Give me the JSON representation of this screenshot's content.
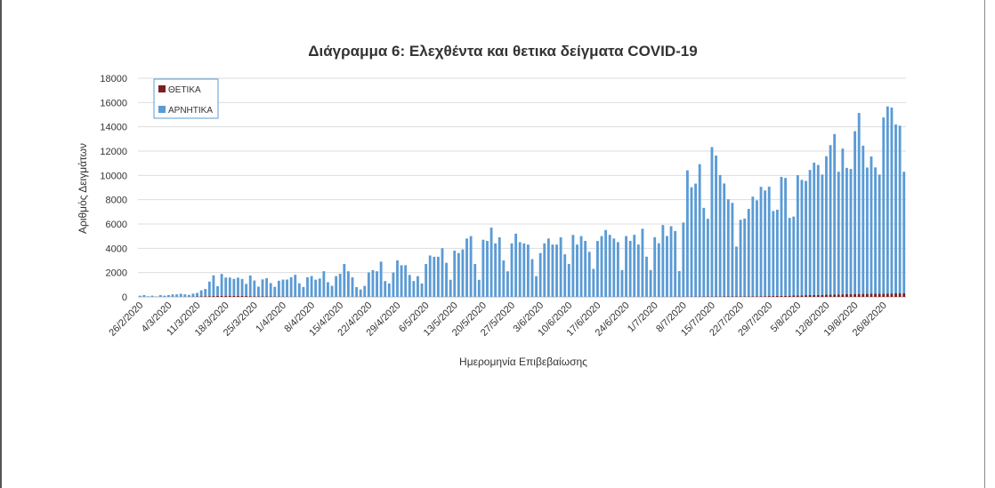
{
  "chart_data": {
    "type": "bar",
    "stacked": true,
    "title": "Διάγραμμα 6: Ελεχθέντα και θετικα δείγματα COVID-19",
    "xlabel": "Ημερομηνία Επιβεβαίωσης",
    "ylabel": "Αριθμός Δειγμάτων",
    "ylim": [
      0,
      18000
    ],
    "yticks": [
      "0",
      "2000",
      "4000",
      "6000",
      "8000",
      "10000",
      "12000",
      "14000",
      "16000",
      "18000"
    ],
    "xticks": [
      "26/2/2020",
      "4/3/2020",
      "11/3/2020",
      "18/3/2020",
      "25/3/2020",
      "1/4/2020",
      "8/4/2020",
      "15/4/2020",
      "22/4/2020",
      "29/4/2020",
      "6/5/2020",
      "13/5/2020",
      "20/5/2020",
      "27/5/2020",
      "3/6/2020",
      "10/6/2020",
      "17/6/2020",
      "24/6/2020",
      "1/7/2020",
      "8/7/2020",
      "15/7/2020",
      "22/7/2020",
      "29/7/2020",
      "5/8/2020",
      "12/8/2020",
      "19/8/2020",
      "26/8/2020"
    ],
    "legend_position": "top-left",
    "grid": true,
    "series": [
      {
        "name": "ΘΕΤΙΚΑ",
        "color": "#7b2020",
        "values": [
          0,
          0,
          0,
          0,
          0,
          0,
          0,
          2,
          3,
          5,
          8,
          10,
          15,
          20,
          30,
          40,
          50,
          60,
          70,
          80,
          90,
          95,
          90,
          85,
          80,
          75,
          70,
          60,
          50,
          45,
          40,
          40,
          35,
          30,
          30,
          25,
          25,
          20,
          20,
          20,
          18,
          15,
          15,
          15,
          12,
          12,
          10,
          10,
          10,
          10,
          8,
          8,
          8,
          8,
          8,
          6,
          6,
          6,
          5,
          5,
          5,
          5,
          5,
          5,
          5,
          5,
          5,
          5,
          5,
          5,
          5,
          5,
          5,
          5,
          5,
          5,
          5,
          5,
          5,
          5,
          5,
          5,
          5,
          5,
          5,
          5,
          5,
          5,
          5,
          5,
          5,
          5,
          5,
          5,
          5,
          5,
          5,
          5,
          5,
          5,
          5,
          5,
          5,
          5,
          5,
          5,
          5,
          5,
          5,
          5,
          5,
          5,
          5,
          5,
          5,
          5,
          5,
          5,
          5,
          5,
          10,
          10,
          10,
          10,
          10,
          10,
          15,
          15,
          15,
          15,
          20,
          20,
          20,
          20,
          20,
          25,
          25,
          25,
          30,
          30,
          30,
          30,
          30,
          35,
          35,
          40,
          40,
          40,
          45,
          45,
          50,
          50,
          60,
          60,
          70,
          70,
          80,
          80,
          90,
          100,
          110,
          120,
          130,
          140,
          150,
          150,
          160,
          170,
          180,
          190,
          200,
          200,
          210,
          220,
          230,
          240,
          240,
          250,
          250,
          260,
          260,
          270,
          270,
          280,
          280,
          290,
          290,
          300
        ]
      },
      {
        "name": "ΑΡΝΗΤΙΚΑ",
        "color": "#5b9bd5",
        "values": [
          100,
          150,
          50,
          100,
          30,
          150,
          100,
          150,
          200,
          200,
          250,
          200,
          150,
          250,
          300,
          500,
          600,
          1200,
          1700,
          800,
          1800,
          1500,
          1500,
          1400,
          1500,
          1400,
          1000,
          1700,
          1300,
          800,
          1400,
          1500,
          1100,
          800,
          1300,
          1400,
          1400,
          1600,
          1800,
          1100,
          800,
          1600,
          1700,
          1400,
          1500,
          2100,
          1200,
          900,
          1700,
          1900,
          2700,
          2100,
          1600,
          800,
          600,
          900,
          2000,
          2200,
          2100,
          2900,
          1300,
          1100,
          2000,
          3000,
          2600,
          2600,
          1800,
          1300,
          1700,
          1100,
          2700,
          3400,
          3300,
          3300,
          4000,
          2800,
          1400,
          3800,
          3600,
          3900,
          4800,
          5000,
          2700,
          1400,
          4700,
          4600,
          5700,
          4400,
          4900,
          3000,
          2100,
          4400,
          5200,
          4500,
          4400,
          4300,
          3100,
          1700,
          3600,
          4400,
          4800,
          4300,
          4300,
          4900,
          3500,
          2700,
          5100,
          4300,
          5000,
          4600,
          3700,
          2300,
          4600,
          5000,
          5500,
          5100,
          4800,
          4500,
          2200,
          5000,
          4600,
          5100,
          4300,
          5600,
          3300,
          2200,
          4900,
          4400,
          5900,
          5000,
          5800,
          5400,
          2100,
          6100,
          10400,
          9000,
          9300,
          10900,
          7300,
          6400,
          12300,
          11600,
          10000,
          9300,
          8000,
          7700,
          4100,
          6300,
          6400,
          7200,
          8200,
          7900,
          9000,
          8700,
          9000,
          7000,
          7100,
          9800,
          9700,
          6400,
          6500,
          9900,
          9500,
          9400,
          10300,
          10900,
          10700,
          9900,
          11400,
          12300,
          13200,
          10100,
          12000,
          10400,
          10300,
          13400,
          14900,
          12200,
          10400,
          11300,
          10400,
          9800,
          14500,
          15400,
          15300,
          13900,
          13800,
          10000
        ]
      }
    ]
  }
}
